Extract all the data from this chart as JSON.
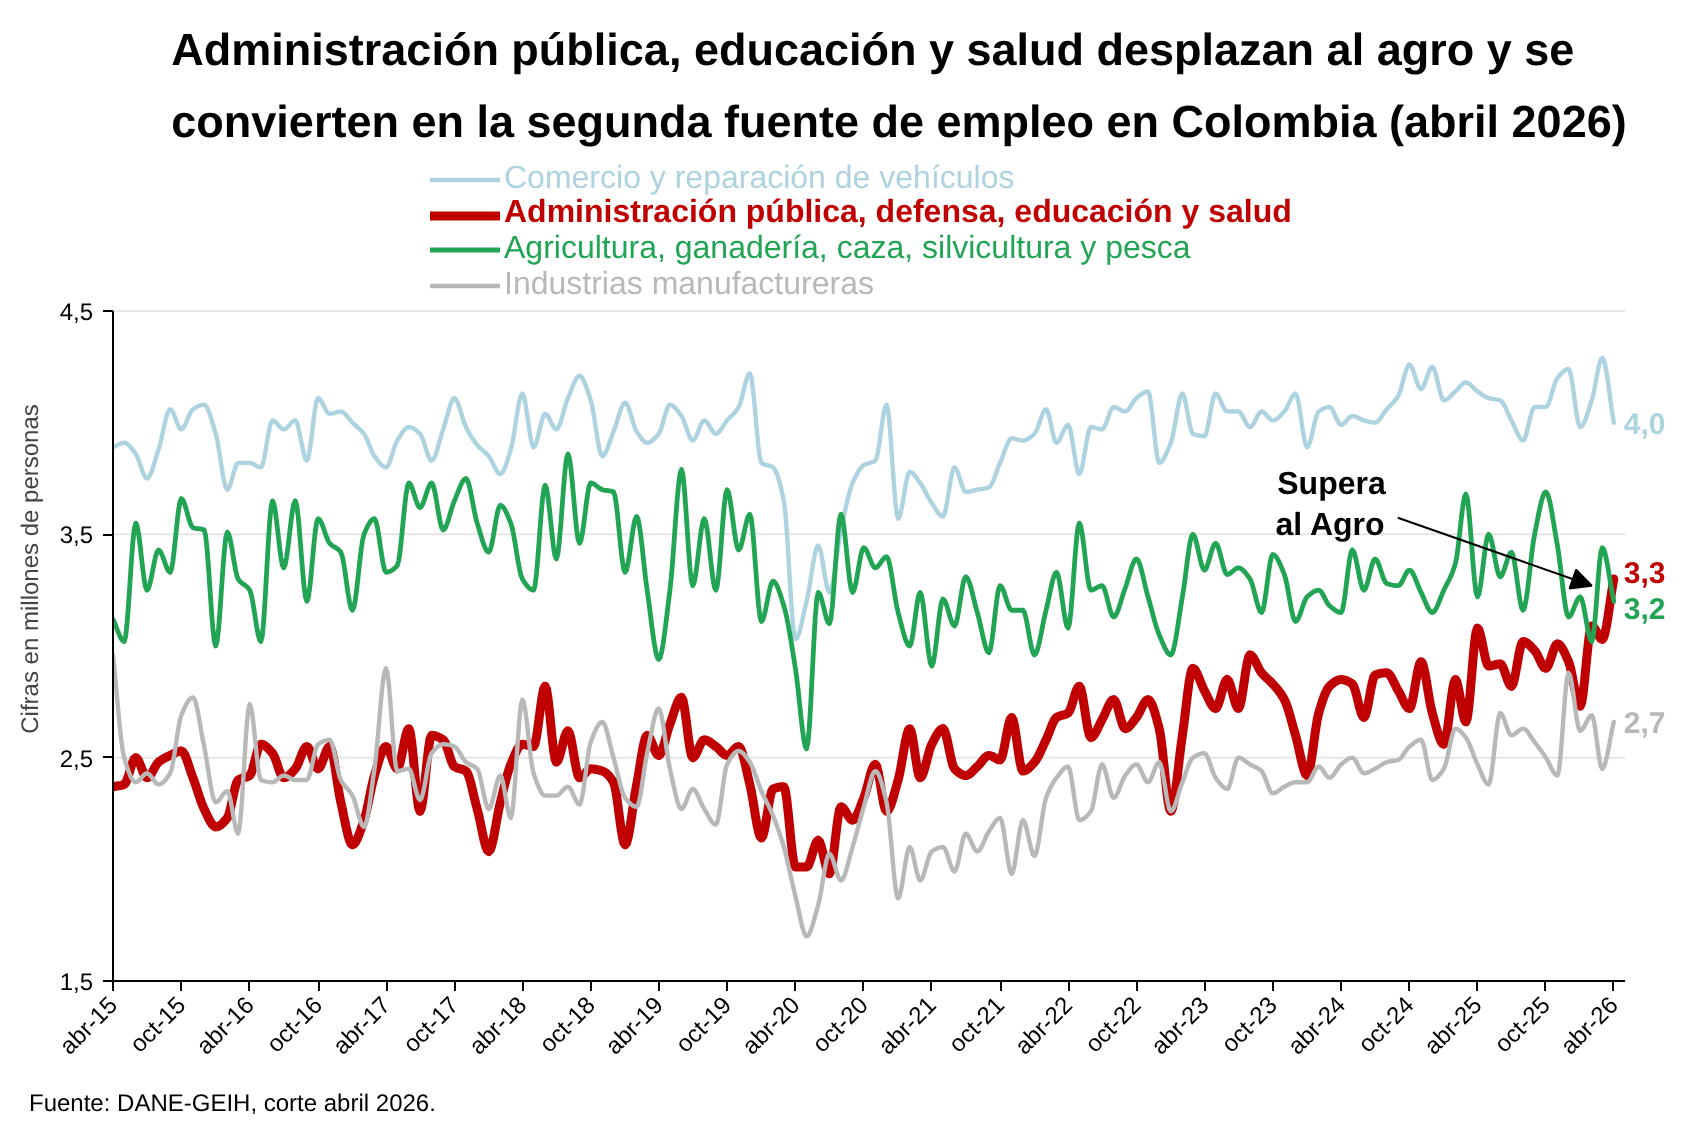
{
  "chart_data": {
    "type": "line",
    "title": "Administración pública, educación y salud desplazan al agro y se\nconvierten en la segunda fuente de empleo en Colombia (abril 2026)",
    "ylabel": "Cifras en millones de personas",
    "annotations": [
      {
        "text": "Supera\nal Agro",
        "x": "2026-02",
        "y": 3.27
      },
      "Fuente: DANE-GEIH, corte abril 2026."
    ],
    "x": [
      "2015-04",
      "2015-05",
      "2015-06",
      "2015-07",
      "2015-08",
      "2015-09",
      "2015-10",
      "2015-11",
      "2015-12",
      "2016-01",
      "2016-02",
      "2016-03",
      "2016-04",
      "2016-05",
      "2016-06",
      "2016-07",
      "2016-08",
      "2016-09",
      "2016-10",
      "2016-11",
      "2016-12",
      "2017-01",
      "2017-02",
      "2017-03",
      "2017-04",
      "2017-05",
      "2017-06",
      "2017-07",
      "2017-08",
      "2017-09",
      "2017-10",
      "2017-11",
      "2017-12",
      "2018-01",
      "2018-02",
      "2018-03",
      "2018-04",
      "2018-05",
      "2018-06",
      "2018-07",
      "2018-08",
      "2018-09",
      "2018-10",
      "2018-11",
      "2018-12",
      "2019-01",
      "2019-02",
      "2019-03",
      "2019-04",
      "2019-05",
      "2019-06",
      "2019-07",
      "2019-08",
      "2019-09",
      "2019-10",
      "2019-11",
      "2019-12",
      "2020-01",
      "2020-02",
      "2020-03",
      "2020-04",
      "2020-05",
      "2020-06",
      "2020-07",
      "2020-08",
      "2020-09",
      "2020-10",
      "2020-11",
      "2020-12",
      "2021-01",
      "2021-02",
      "2021-03",
      "2021-04",
      "2021-05",
      "2021-06",
      "2021-07",
      "2021-08",
      "2021-09",
      "2021-10",
      "2021-11",
      "2021-12",
      "2022-01",
      "2022-02",
      "2022-03",
      "2022-04",
      "2022-05",
      "2022-06",
      "2022-07",
      "2022-08",
      "2022-09",
      "2022-10",
      "2022-11",
      "2022-12",
      "2023-01",
      "2023-02",
      "2023-03",
      "2023-04",
      "2023-05",
      "2023-06",
      "2023-07",
      "2023-08",
      "2023-09",
      "2023-10",
      "2023-11",
      "2023-12",
      "2024-01",
      "2024-02",
      "2024-03",
      "2024-04",
      "2024-05",
      "2024-06",
      "2024-07",
      "2024-08",
      "2024-09",
      "2024-10",
      "2024-11",
      "2024-12",
      "2025-01",
      "2025-02",
      "2025-03",
      "2025-04",
      "2025-05",
      "2025-06",
      "2025-07",
      "2025-08",
      "2025-09",
      "2025-10",
      "2025-11",
      "2025-12",
      "2026-01",
      "2026-02",
      "2026-03",
      "2026-04"
    ],
    "xlim": [
      "2015-04",
      "2026-05"
    ],
    "xticks": [
      {
        "value": "2015-04",
        "label": "abr-15"
      },
      {
        "value": "2015-10",
        "label": "oct-15"
      },
      {
        "value": "2016-04",
        "label": "abr-16"
      },
      {
        "value": "2016-10",
        "label": "oct-16"
      },
      {
        "value": "2017-04",
        "label": "abr-17"
      },
      {
        "value": "2017-10",
        "label": "oct-17"
      },
      {
        "value": "2018-04",
        "label": "abr-18"
      },
      {
        "value": "2018-10",
        "label": "oct-18"
      },
      {
        "value": "2019-04",
        "label": "abr-19"
      },
      {
        "value": "2019-10",
        "label": "oct-19"
      },
      {
        "value": "2020-04",
        "label": "abr-20"
      },
      {
        "value": "2020-10",
        "label": "oct-20"
      },
      {
        "value": "2021-04",
        "label": "abr-21"
      },
      {
        "value": "2021-10",
        "label": "oct-21"
      },
      {
        "value": "2022-04",
        "label": "abr-22"
      },
      {
        "value": "2022-10",
        "label": "oct-22"
      },
      {
        "value": "2023-04",
        "label": "abr-23"
      },
      {
        "value": "2023-10",
        "label": "oct-23"
      },
      {
        "value": "2024-04",
        "label": "abr-24"
      },
      {
        "value": "2024-10",
        "label": "oct-24"
      },
      {
        "value": "2025-04",
        "label": "abr-25"
      },
      {
        "value": "2025-10",
        "label": "oct-25"
      },
      {
        "value": "2026-04",
        "label": "abr-26"
      }
    ],
    "ylim": [
      1.5,
      4.5
    ],
    "yticks": [
      {
        "value": 1.5,
        "label": "1,5"
      },
      {
        "value": 2.5,
        "label": "2,5"
      },
      {
        "value": 3.5,
        "label": "3,5"
      },
      {
        "value": 4.5,
        "label": "4,5"
      }
    ],
    "grid": "y",
    "legend": "top",
    "series": [
      {
        "name": "Comercio y reparación de vehículos",
        "color": "#add3e0",
        "values": [
          3.89,
          3.91,
          3.86,
          3.75,
          3.88,
          4.06,
          3.97,
          4.06,
          4.08,
          3.95,
          3.7,
          3.82,
          3.82,
          3.8,
          4.01,
          3.97,
          4.01,
          3.83,
          4.11,
          4.04,
          4.05,
          4.0,
          3.95,
          3.85,
          3.8,
          3.92,
          3.98,
          3.95,
          3.83,
          3.97,
          4.11,
          3.98,
          3.9,
          3.85,
          3.77,
          3.88,
          4.13,
          3.89,
          4.04,
          3.97,
          4.11,
          4.21,
          4.1,
          3.85,
          3.96,
          4.09,
          3.96,
          3.91,
          3.95,
          4.08,
          4.03,
          3.92,
          4.01,
          3.95,
          4.01,
          4.07,
          4.22,
          3.82,
          3.8,
          3.65,
          3.03,
          3.2,
          3.45,
          3.24,
          3.52,
          3.73,
          3.81,
          3.83,
          4.08,
          3.57,
          3.78,
          3.73,
          3.64,
          3.58,
          3.8,
          3.69,
          3.7,
          3.71,
          3.82,
          3.93,
          3.92,
          3.95,
          4.06,
          3.91,
          3.99,
          3.77,
          3.98,
          3.97,
          4.07,
          4.05,
          4.11,
          4.14,
          3.82,
          3.91,
          4.13,
          3.95,
          3.94,
          4.13,
          4.05,
          4.05,
          3.98,
          4.05,
          4.01,
          4.05,
          4.13,
          3.89,
          4.05,
          4.07,
          3.99,
          4.03,
          4.01,
          4.0,
          4.06,
          4.12,
          4.26,
          4.15,
          4.25,
          4.1,
          4.14,
          4.18,
          4.14,
          4.11,
          4.1,
          4.01,
          3.92,
          4.07,
          4.07,
          4.2,
          4.24,
          3.98,
          4.1,
          4.29,
          4.0
        ],
        "value_labels": [
          null,
          null,
          null,
          null,
          null,
          null,
          null,
          null,
          null,
          null,
          null,
          null,
          null,
          null,
          null,
          null,
          null,
          null,
          null,
          null,
          null,
          null,
          null,
          null,
          null,
          null,
          null,
          null,
          null,
          null,
          null,
          null,
          null,
          null,
          null,
          null,
          null,
          null,
          null,
          null,
          null,
          null,
          null,
          null,
          null,
          null,
          null,
          null,
          null,
          null,
          null,
          null,
          null,
          null,
          null,
          null,
          null,
          null,
          null,
          null,
          null,
          null,
          null,
          null,
          null,
          null,
          null,
          null,
          null,
          null,
          null,
          null,
          null,
          null,
          null,
          null,
          null,
          null,
          null,
          null,
          null,
          null,
          null,
          null,
          null,
          null,
          null,
          null,
          null,
          null,
          null,
          null,
          null,
          null,
          null,
          null,
          null,
          null,
          null,
          null,
          null,
          null,
          null,
          null,
          null,
          null,
          null,
          null,
          null,
          null,
          null,
          null,
          null,
          null,
          null,
          null,
          null,
          null,
          null,
          null,
          null,
          null,
          null,
          null,
          null,
          null,
          null,
          null,
          null,
          null,
          null,
          null,
          "4,0"
        ]
      },
      {
        "name": "Administración pública, defensa, educación y salud",
        "color": "#c00000",
        "values": [
          2.37,
          2.38,
          2.5,
          2.41,
          2.48,
          2.51,
          2.53,
          2.41,
          2.27,
          2.19,
          2.23,
          2.4,
          2.42,
          2.56,
          2.52,
          2.41,
          2.45,
          2.55,
          2.45,
          2.55,
          2.3,
          2.11,
          2.22,
          2.42,
          2.55,
          2.45,
          2.63,
          2.26,
          2.6,
          2.58,
          2.46,
          2.44,
          2.27,
          2.08,
          2.3,
          2.47,
          2.56,
          2.55,
          2.82,
          2.48,
          2.62,
          2.41,
          2.45,
          2.44,
          2.39,
          2.11,
          2.38,
          2.6,
          2.51,
          2.65,
          2.77,
          2.5,
          2.58,
          2.55,
          2.51,
          2.55,
          2.38,
          2.14,
          2.36,
          2.37,
          2.01,
          2.01,
          2.13,
          1.98,
          2.28,
          2.22,
          2.32,
          2.47,
          2.26,
          2.4,
          2.63,
          2.41,
          2.56,
          2.63,
          2.45,
          2.42,
          2.46,
          2.51,
          2.49,
          2.68,
          2.44,
          2.48,
          2.58,
          2.68,
          2.7,
          2.82,
          2.59,
          2.67,
          2.76,
          2.63,
          2.68,
          2.76,
          2.63,
          2.26,
          2.6,
          2.9,
          2.8,
          2.72,
          2.85,
          2.72,
          2.96,
          2.88,
          2.83,
          2.76,
          2.6,
          2.42,
          2.7,
          2.82,
          2.85,
          2.83,
          2.68,
          2.87,
          2.88,
          2.8,
          2.72,
          2.93,
          2.7,
          2.56,
          2.85,
          2.66,
          3.08,
          2.91,
          2.92,
          2.82,
          3.02,
          2.98,
          2.9,
          3.01,
          2.93,
          2.73,
          3.09,
          3.03,
          3.3
        ],
        "value_labels": [
          null,
          null,
          null,
          null,
          null,
          null,
          null,
          null,
          null,
          null,
          null,
          null,
          null,
          null,
          null,
          null,
          null,
          null,
          null,
          null,
          null,
          null,
          null,
          null,
          null,
          null,
          null,
          null,
          null,
          null,
          null,
          null,
          null,
          null,
          null,
          null,
          null,
          null,
          null,
          null,
          null,
          null,
          null,
          null,
          null,
          null,
          null,
          null,
          null,
          null,
          null,
          null,
          null,
          null,
          null,
          null,
          null,
          null,
          null,
          null,
          null,
          null,
          null,
          null,
          null,
          null,
          null,
          null,
          null,
          null,
          null,
          null,
          null,
          null,
          null,
          null,
          null,
          null,
          null,
          null,
          null,
          null,
          null,
          null,
          null,
          null,
          null,
          null,
          null,
          null,
          null,
          null,
          null,
          null,
          null,
          null,
          null,
          null,
          null,
          null,
          null,
          null,
          null,
          null,
          null,
          null,
          null,
          null,
          null,
          null,
          null,
          null,
          null,
          null,
          null,
          null,
          null,
          null,
          null,
          null,
          null,
          null,
          null,
          null,
          null,
          null,
          null,
          null,
          null,
          null,
          null,
          null,
          "3,3"
        ]
      },
      {
        "name": "Agricultura, ganadería, caza, silvicultura y pesca",
        "color": "#22a455",
        "values": [
          3.12,
          3.02,
          3.55,
          3.25,
          3.43,
          3.33,
          3.66,
          3.53,
          3.52,
          3.0,
          3.51,
          3.3,
          3.25,
          3.02,
          3.65,
          3.35,
          3.65,
          3.2,
          3.57,
          3.46,
          3.42,
          3.16,
          3.5,
          3.57,
          3.33,
          3.36,
          3.73,
          3.62,
          3.73,
          3.52,
          3.65,
          3.75,
          3.55,
          3.42,
          3.63,
          3.55,
          3.3,
          3.25,
          3.72,
          3.39,
          3.86,
          3.46,
          3.73,
          3.7,
          3.69,
          3.33,
          3.58,
          3.25,
          2.94,
          3.25,
          3.79,
          3.27,
          3.57,
          3.25,
          3.7,
          3.43,
          3.59,
          3.11,
          3.29,
          3.18,
          2.9,
          2.54,
          3.24,
          3.1,
          3.59,
          3.24,
          3.44,
          3.35,
          3.4,
          3.15,
          3.0,
          3.24,
          2.91,
          3.21,
          3.09,
          3.31,
          3.15,
          2.97,
          3.27,
          3.16,
          3.16,
          2.96,
          3.16,
          3.33,
          3.08,
          3.55,
          3.25,
          3.27,
          3.13,
          3.26,
          3.39,
          3.22,
          3.05,
          2.96,
          3.22,
          3.5,
          3.34,
          3.46,
          3.32,
          3.35,
          3.3,
          3.15,
          3.41,
          3.32,
          3.11,
          3.22,
          3.25,
          3.18,
          3.15,
          3.43,
          3.25,
          3.39,
          3.28,
          3.27,
          3.34,
          3.24,
          3.15,
          3.25,
          3.37,
          3.68,
          3.22,
          3.5,
          3.31,
          3.42,
          3.16,
          3.5,
          3.69,
          3.45,
          3.13,
          3.22,
          3.02,
          3.44,
          3.2
        ],
        "value_labels": [
          null,
          null,
          null,
          null,
          null,
          null,
          null,
          null,
          null,
          null,
          null,
          null,
          null,
          null,
          null,
          null,
          null,
          null,
          null,
          null,
          null,
          null,
          null,
          null,
          null,
          null,
          null,
          null,
          null,
          null,
          null,
          null,
          null,
          null,
          null,
          null,
          null,
          null,
          null,
          null,
          null,
          null,
          null,
          null,
          null,
          null,
          null,
          null,
          null,
          null,
          null,
          null,
          null,
          null,
          null,
          null,
          null,
          null,
          null,
          null,
          null,
          null,
          null,
          null,
          null,
          null,
          null,
          null,
          null,
          null,
          null,
          null,
          null,
          null,
          null,
          null,
          null,
          null,
          null,
          null,
          null,
          null,
          null,
          null,
          null,
          null,
          null,
          null,
          null,
          null,
          null,
          null,
          null,
          null,
          null,
          null,
          null,
          null,
          null,
          null,
          null,
          null,
          null,
          null,
          null,
          null,
          null,
          null,
          null,
          null,
          null,
          null,
          null,
          null,
          null,
          null,
          null,
          null,
          null,
          null,
          null,
          null,
          null,
          null,
          null,
          null,
          null,
          null,
          null,
          null,
          null,
          null,
          "3,2"
        ]
      },
      {
        "name": "Industrias manufactureras",
        "color": "#b8b8b8",
        "values": [
          2.96,
          2.5,
          2.39,
          2.43,
          2.38,
          2.43,
          2.69,
          2.77,
          2.55,
          2.3,
          2.35,
          2.16,
          2.74,
          2.4,
          2.39,
          2.42,
          2.4,
          2.4,
          2.56,
          2.58,
          2.4,
          2.33,
          2.19,
          2.45,
          2.9,
          2.44,
          2.45,
          2.31,
          2.52,
          2.56,
          2.55,
          2.48,
          2.45,
          2.27,
          2.42,
          2.23,
          2.76,
          2.43,
          2.33,
          2.33,
          2.37,
          2.29,
          2.57,
          2.66,
          2.5,
          2.32,
          2.28,
          2.52,
          2.72,
          2.45,
          2.27,
          2.36,
          2.27,
          2.2,
          2.47,
          2.53,
          2.48,
          2.35,
          2.24,
          2.1,
          1.88,
          1.7,
          1.84,
          2.07,
          1.95,
          2.1,
          2.28,
          2.44,
          2.3,
          1.87,
          2.1,
          1.95,
          2.08,
          2.1,
          1.99,
          2.16,
          2.08,
          2.17,
          2.23,
          1.98,
          2.22,
          2.06,
          2.32,
          2.41,
          2.46,
          2.22,
          2.26,
          2.47,
          2.32,
          2.42,
          2.47,
          2.39,
          2.48,
          2.26,
          2.39,
          2.5,
          2.52,
          2.41,
          2.36,
          2.5,
          2.47,
          2.44,
          2.34,
          2.37,
          2.39,
          2.39,
          2.46,
          2.41,
          2.47,
          2.5,
          2.43,
          2.45,
          2.48,
          2.49,
          2.55,
          2.58,
          2.4,
          2.45,
          2.63,
          2.59,
          2.47,
          2.38,
          2.7,
          2.6,
          2.63,
          2.57,
          2.5,
          2.42,
          2.88,
          2.62,
          2.69,
          2.45,
          2.66
        ],
        "value_labels": [
          null,
          null,
          null,
          null,
          null,
          null,
          null,
          null,
          null,
          null,
          null,
          null,
          null,
          null,
          null,
          null,
          null,
          null,
          null,
          null,
          null,
          null,
          null,
          null,
          null,
          null,
          null,
          null,
          null,
          null,
          null,
          null,
          null,
          null,
          null,
          null,
          null,
          null,
          null,
          null,
          null,
          null,
          null,
          null,
          null,
          null,
          null,
          null,
          null,
          null,
          null,
          null,
          null,
          null,
          null,
          null,
          null,
          null,
          null,
          null,
          null,
          null,
          null,
          null,
          null,
          null,
          null,
          null,
          null,
          null,
          null,
          null,
          null,
          null,
          null,
          null,
          null,
          null,
          null,
          null,
          null,
          null,
          null,
          null,
          null,
          null,
          null,
          null,
          null,
          null,
          null,
          null,
          null,
          null,
          null,
          null,
          null,
          null,
          null,
          null,
          null,
          null,
          null,
          null,
          null,
          null,
          null,
          null,
          null,
          null,
          null,
          null,
          null,
          null,
          null,
          null,
          null,
          null,
          null,
          null,
          null,
          null,
          null,
          null,
          null,
          null,
          null,
          null,
          null,
          null,
          null,
          null,
          "2,7"
        ]
      }
    ]
  }
}
